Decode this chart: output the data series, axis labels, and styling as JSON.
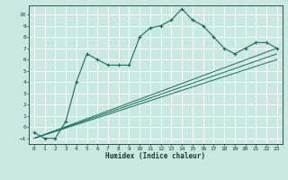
{
  "title": "",
  "xlabel": "Humidex (Indice chaleur)",
  "ylabel": "",
  "bg_color": "#c8e8e0",
  "grid_color": "#b0d8d0",
  "line_color": "#1a6e60",
  "xlim": [
    -0.5,
    23.5
  ],
  "ylim": [
    -1.5,
    10.8
  ],
  "yticks": [
    -1,
    0,
    1,
    2,
    3,
    4,
    5,
    6,
    7,
    8,
    9,
    10
  ],
  "xticks": [
    0,
    1,
    2,
    3,
    4,
    5,
    6,
    7,
    8,
    9,
    10,
    11,
    12,
    13,
    14,
    15,
    16,
    17,
    18,
    19,
    20,
    21,
    22,
    23
  ],
  "wavy_x": [
    0,
    1,
    2,
    3,
    4,
    5,
    6,
    7,
    8,
    9,
    10,
    11,
    12,
    13,
    14,
    15,
    16,
    17,
    18,
    19,
    20,
    21,
    22,
    23
  ],
  "wavy_y": [
    -0.5,
    -1.0,
    -1.0,
    0.5,
    4.0,
    6.5,
    6.0,
    5.5,
    5.5,
    5.5,
    8.0,
    8.8,
    9.0,
    9.5,
    10.5,
    9.5,
    9.0,
    8.0,
    7.0,
    6.5,
    7.0,
    7.5,
    7.5,
    7.0
  ],
  "line1_x": [
    0,
    23
  ],
  "line1_y": [
    -1.0,
    7.0
  ],
  "line2_x": [
    0,
    23
  ],
  "line2_y": [
    -1.0,
    6.5
  ],
  "line3_x": [
    0,
    23
  ],
  "line3_y": [
    -1.0,
    6.0
  ],
  "figsize": [
    3.2,
    2.0
  ],
  "dpi": 100
}
